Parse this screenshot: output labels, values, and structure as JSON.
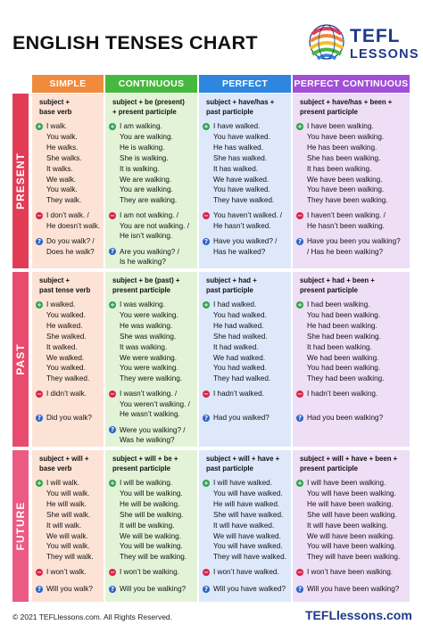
{
  "title": "ENGLISH TENSES CHART",
  "logo": {
    "line1": "TEFL",
    "line2": "LESSONS"
  },
  "columns": [
    "SIMPLE",
    "CONTINUOUS",
    "PERFECT",
    "PERFECT CONTINUOUS"
  ],
  "rows": [
    {
      "label": "PRESENT",
      "cells": [
        {
          "formula": [
            "subject +",
            "base verb"
          ],
          "positive": [
            "I walk.",
            "You walk.",
            "He walks.",
            "She walks.",
            "It walks.",
            "We walk.",
            "You walk.",
            "They walk."
          ],
          "negative": [
            "I don’t walk. /",
            "He doesn’t walk."
          ],
          "question": [
            "Do you walk? /",
            "Does he walk?"
          ]
        },
        {
          "formula": [
            "subject + be (present)",
            "+ present participle"
          ],
          "positive": [
            "I am walking.",
            "You are walking.",
            "He is walking.",
            "She is walking.",
            "It is walking.",
            "We are walking.",
            "You are walking.",
            "They are walking."
          ],
          "negative": [
            "I am not walking. /",
            "You are not walking. /",
            "He isn’t walking."
          ],
          "question": [
            "Are you walking? /",
            "Is he walking?"
          ]
        },
        {
          "formula": [
            "subject + have/has +",
            "past participle"
          ],
          "positive": [
            "I have walked.",
            "You have walked.",
            "He has walked.",
            "She has walked.",
            "It has walked.",
            "We have walked.",
            "You have walked.",
            "They have walked."
          ],
          "negative": [
            "You haven’t walked. /",
            "He hasn’t walked."
          ],
          "question": [
            "Have you walked? /",
            "Has he walked?"
          ]
        },
        {
          "formula": [
            "subject + have/has + been +",
            "present participle"
          ],
          "positive": [
            "I have been walking.",
            "You have been walking.",
            "He has been walking.",
            "She has been walking.",
            "It has been walking.",
            "We have been walking.",
            "You have been walking.",
            "They have been walking."
          ],
          "negative": [
            "I haven’t been walking. /",
            "He hasn’t been walking."
          ],
          "question": [
            "Have you been you walking?",
            "/ Has he been walking?"
          ]
        }
      ]
    },
    {
      "label": "PAST",
      "cells": [
        {
          "formula": [
            "subject +",
            "past tense verb"
          ],
          "positive": [
            "I walked.",
            "You walked.",
            "He walked.",
            "She walked.",
            "It walked.",
            "We walked.",
            "You walked.",
            "They walked."
          ],
          "negative": [
            "I didn’t walk."
          ],
          "question": [
            "Did you walk?"
          ]
        },
        {
          "formula": [
            "subject + be (past) +",
            "present participle"
          ],
          "positive": [
            "I was walking.",
            "You were walking.",
            "He was walking.",
            "She was walking.",
            "It was walking.",
            "We were walking.",
            "You were walking.",
            "They were walking."
          ],
          "negative": [
            "I wasn’t walking. /",
            "You weren’t walking. /",
            "He wasn’t walking."
          ],
          "question": [
            "Were you walking? /",
            "Was he walking?"
          ]
        },
        {
          "formula": [
            "subject + had +",
            "past participle"
          ],
          "positive": [
            "I had walked.",
            "You had walked.",
            "He had walked.",
            "She had walked.",
            "It had walked.",
            "We had walked.",
            "You had walked.",
            "They had walked."
          ],
          "negative": [
            "I hadn’t walked."
          ],
          "question": [
            "Had you walked?"
          ]
        },
        {
          "formula": [
            "subject + had + been +",
            "present participle"
          ],
          "positive": [
            "I had been walking.",
            "You had been walking.",
            "He had been walking.",
            "She had been walking.",
            "It had been walking.",
            "We had been walking.",
            "You had been walking.",
            "They had been walking."
          ],
          "negative": [
            "I hadn’t been walking."
          ],
          "question": [
            "Had you been walking?"
          ]
        }
      ]
    },
    {
      "label": "FUTURE",
      "cells": [
        {
          "formula": [
            "subject + will +",
            "base verb"
          ],
          "positive": [
            "I will walk.",
            "You will walk.",
            "He will walk.",
            "She will walk.",
            "It will walk.",
            "We will walk.",
            "You will walk.",
            "They will walk."
          ],
          "negative": [
            "I won’t walk."
          ],
          "question": [
            "Will you walk?"
          ]
        },
        {
          "formula": [
            "subject + will + be +",
            "present participle"
          ],
          "positive": [
            "I will be walking.",
            "You will be walking.",
            "He will be walking.",
            "She will be walking.",
            "It will be walking.",
            "We will be walking.",
            "You will be walking.",
            "They will be walking."
          ],
          "negative": [
            "I won’t be walking."
          ],
          "question": [
            "Will you be walking?"
          ]
        },
        {
          "formula": [
            "subject + will + have +",
            "past participle"
          ],
          "positive": [
            "I will have walked.",
            "You will have walked.",
            "He will have walked.",
            "She will have walked.",
            "It will have walked.",
            "We will have walked.",
            "You will have walked.",
            "They will have walked."
          ],
          "negative": [
            "I won’t have walked."
          ],
          "question": [
            "Will you have walked?"
          ]
        },
        {
          "formula": [
            "subject + will + have + been +",
            "present participle"
          ],
          "positive": [
            "I will have been walking.",
            "You will have been walking.",
            "He will have been walking.",
            "She will have been walking.",
            "It will have been walking.",
            "We will have been walking.",
            "You will have been walking.",
            "They will have been walking."
          ],
          "negative": [
            "I won’t have been walking."
          ],
          "question": [
            "Will you have been walking?"
          ]
        }
      ]
    }
  ],
  "footer": {
    "copyright": "© 2021 TEFLlessons.com. All Rights Reserved.",
    "brand": "TEFLlessons.com"
  },
  "colors": {
    "col_heads": [
      "#f08a3c",
      "#47b83f",
      "#2e86de",
      "#a24fd8"
    ],
    "row_labels": [
      "#e23c55",
      "#e84b6e",
      "#ec5a84"
    ],
    "cell_bg": [
      "#fde3d6",
      "#e3f3d8",
      "#dde8fb",
      "#eedef6"
    ],
    "icon_plus": "#29a24a",
    "icon_minus": "#d9234b",
    "icon_question": "#2c62c9"
  }
}
